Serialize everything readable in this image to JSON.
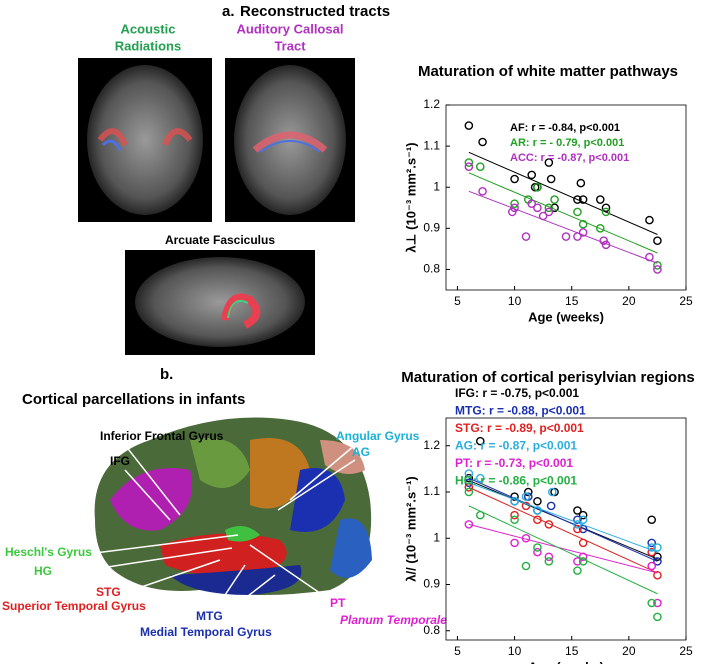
{
  "figure": {
    "panel_a": "a.",
    "panel_a_title": "Reconstructed tracts",
    "acoustic": [
      "Acoustic",
      "Radiations"
    ],
    "callosal": [
      "Auditory Callosal",
      "Tract"
    ],
    "arcuate": "Arcuate Fasciculus",
    "panel_b": "b.",
    "panel_b_title": "Cortical parcellations in infants",
    "labels": [
      {
        "text": "Inferior Frontal Gyrus",
        "color": "#000000"
      },
      {
        "text": "IFG",
        "color": "#000000"
      },
      {
        "text": "Angular Gyrus",
        "color": "#1ab0d8"
      },
      {
        "text": "AG",
        "color": "#1ab0d8"
      },
      {
        "text": "Heschl's Gyrus",
        "color": "#3cc83c"
      },
      {
        "text": "HG",
        "color": "#3cc83c"
      },
      {
        "text": "STG",
        "color": "#e02020"
      },
      {
        "text": "Superior Temporal Gyrus",
        "color": "#e02020"
      },
      {
        "text": "MTG",
        "color": "#1a2fb0"
      },
      {
        "text": "Medial Temporal Gyrus",
        "color": "#1a2fb0"
      },
      {
        "text": "PT",
        "color": "#e020d0"
      },
      {
        "text": "Planum Temporale",
        "color": "#e020d0"
      }
    ]
  },
  "chart_data": [
    {
      "type": "scatter",
      "title": "Maturation of white matter pathways",
      "y_label": "λ⊥ (10⁻³ mm².s⁻¹)",
      "x_label": "Age (weeks)",
      "xlim": [
        4,
        25
      ],
      "xticks": [
        5,
        10,
        15,
        20,
        25
      ],
      "ylim": [
        0.75,
        1.2
      ],
      "yticks": [
        {
          "value": 0.8,
          "label": "0.8"
        },
        {
          "value": 0.9,
          "label": "0.9"
        },
        1,
        1.1,
        1.2
      ],
      "legend": "upper right",
      "series": [
        {
          "name": "AF: r = -0.84, p<0.001",
          "color": "#000000",
          "x": [
            6,
            7.2,
            10,
            11.5,
            11.8,
            12,
            13,
            13.2,
            13.5,
            15.5,
            15.8,
            16,
            17.5,
            18,
            21.8,
            22.5
          ],
          "values": [
            1.15,
            1.11,
            1.02,
            1.03,
            1.0,
            1.0,
            1.06,
            1.02,
            0.95,
            0.97,
            1.01,
            0.97,
            0.97,
            0.95,
            0.92,
            0.87
          ],
          "fit_x": [
            6,
            22.5
          ],
          "fit_y": [
            1.085,
            0.885
          ]
        },
        {
          "name": "AR: r = - 0.79, p<0.001",
          "color": "#22a022",
          "x": [
            6,
            7,
            10,
            11.2,
            12,
            13,
            13.5,
            15.5,
            16,
            17.5,
            18,
            22.5
          ],
          "values": [
            1.06,
            1.05,
            0.96,
            0.97,
            1.0,
            0.95,
            0.97,
            0.94,
            0.91,
            0.9,
            0.94,
            0.81
          ],
          "fit_x": [
            6,
            22.5
          ],
          "fit_y": [
            1.035,
            0.84
          ]
        },
        {
          "name": "ACC: r = -0.87, p<0.001",
          "color": "#b030c0",
          "x": [
            6,
            7.2,
            9.8,
            10,
            11,
            11.5,
            12,
            12.5,
            13,
            14.5,
            15.5,
            16,
            17.8,
            18,
            21.8,
            22.5
          ],
          "values": [
            1.05,
            0.99,
            0.94,
            0.95,
            0.88,
            0.96,
            0.95,
            0.93,
            0.94,
            0.88,
            0.88,
            0.89,
            0.87,
            0.86,
            0.83,
            0.8
          ],
          "fit_x": [
            6,
            22.5
          ],
          "fit_y": [
            0.99,
            0.815
          ]
        }
      ]
    },
    {
      "type": "scatter",
      "title": "Maturation of cortical perisylvian regions",
      "y_label": "λ// (10⁻³ mm².s⁻¹)",
      "x_label": "Age (weeks)",
      "xlim": [
        4,
        25
      ],
      "xticks": [
        5,
        10,
        15,
        20,
        25
      ],
      "ylim": [
        0.78,
        1.26
      ],
      "yticks": [
        {
          "value": 0.8,
          "label": "0.8"
        },
        {
          "value": 0.9,
          "label": "0.9"
        },
        1,
        1.1,
        1.2
      ],
      "legend": "above",
      "series": [
        {
          "name": "IFG: r = -0.75,   p<0.001",
          "color": "#000000",
          "x": [
            6,
            7,
            10,
            11.2,
            12,
            13.5,
            15.5,
            16,
            22,
            22.5
          ],
          "values": [
            1.13,
            1.21,
            1.09,
            1.1,
            1.08,
            1.1,
            1.06,
            1.05,
            1.04,
            0.96
          ],
          "fit_x": [
            6,
            22.5
          ],
          "fit_y": [
            1.125,
            0.955
          ]
        },
        {
          "name": "MTG: r = -0.88, p<0.001",
          "color": "#1a2fb0",
          "x": [
            6,
            10,
            11.2,
            12,
            13.2,
            15.5,
            16,
            22,
            22.5
          ],
          "values": [
            1.12,
            1.08,
            1.09,
            1.06,
            1.07,
            1.04,
            1.02,
            0.99,
            0.95
          ],
          "fit_x": [
            6,
            22.5
          ],
          "fit_y": [
            1.13,
            0.95
          ]
        },
        {
          "name": "STG: r = -0.89, p<0.001",
          "color": "#e02020",
          "x": [
            6,
            10,
            11,
            12,
            13,
            15.5,
            16,
            22,
            22.5
          ],
          "values": [
            1.11,
            1.05,
            1.07,
            1.04,
            1.03,
            1.02,
            0.99,
            0.97,
            0.92
          ],
          "fit_x": [
            6,
            22.5
          ],
          "fit_y": [
            1.11,
            0.925
          ]
        },
        {
          "name": "AG: r = -0.87, p<0.001",
          "color": "#2aaee0",
          "x": [
            6,
            7,
            10,
            11,
            12,
            13.3,
            15.5,
            16,
            22,
            22.5
          ],
          "values": [
            1.14,
            1.13,
            1.08,
            1.09,
            1.06,
            1.1,
            1.03,
            1.04,
            0.98,
            0.98
          ],
          "fit_x": [
            6,
            22.5
          ],
          "fit_y": [
            1.12,
            0.97
          ]
        },
        {
          "name": "PT: r = -0.73,   p<0.001",
          "color": "#e020d0",
          "x": [
            6,
            10,
            11,
            12,
            13,
            15.5,
            16,
            22,
            22.5
          ],
          "values": [
            1.03,
            0.99,
            1.0,
            0.97,
            0.96,
            0.95,
            0.96,
            0.94,
            0.86
          ],
          "fit_x": [
            6,
            22.5
          ],
          "fit_y": [
            1.03,
            0.925
          ]
        },
        {
          "name": "HG: r = -0.86, p<0.001",
          "color": "#22b040",
          "x": [
            6,
            7,
            10,
            11,
            12,
            13,
            15.5,
            16,
            22,
            22.5
          ],
          "values": [
            1.1,
            1.05,
            1.04,
            0.94,
            0.98,
            0.95,
            0.93,
            0.95,
            0.86,
            0.83
          ],
          "fit_x": [
            6,
            22.5
          ],
          "fit_y": [
            1.07,
            0.88
          ]
        }
      ]
    }
  ]
}
